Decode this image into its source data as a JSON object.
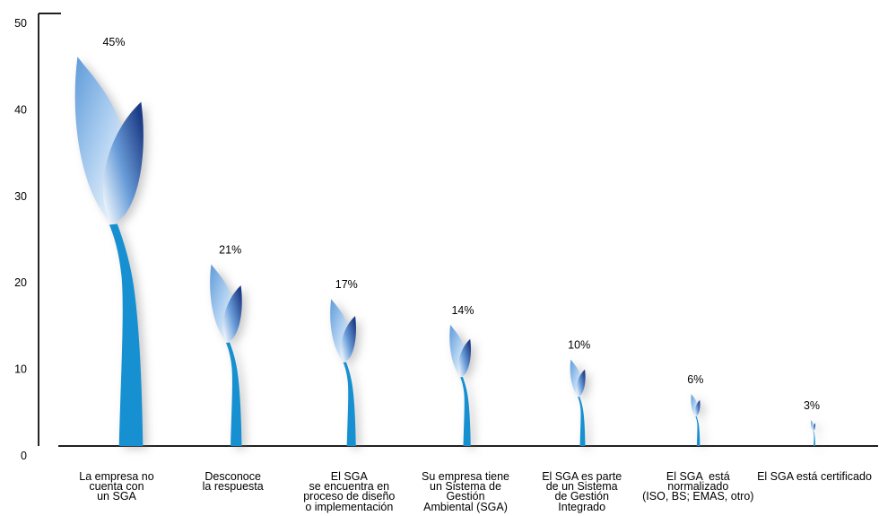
{
  "chart_data": {
    "type": "bar",
    "categories": [
      "La empresa no\ncuenta con\nun SGA",
      "Desconoce\nla respuesta",
      "El SGA\nse encuentra en\nproceso de diseño\no implementación",
      "Su empresa tiene\nun Sistema de\nGestión\nAmbiental (SGA)",
      "El SGA es parte\nde un Sistema\nde Gestión\nIntegrado",
      "El SGA  está\nnormalizado\n(ISO, BS; EMAS, otro)",
      "El SGA está certificado"
    ],
    "values": [
      45,
      21,
      17,
      14,
      10,
      6,
      3
    ],
    "data_labels": [
      "45%",
      "21%",
      "17%",
      "14%",
      "10%",
      "6%",
      "3%"
    ],
    "ylim": [
      0,
      50
    ],
    "yticks": [
      0,
      10,
      20,
      30,
      40,
      50
    ],
    "grid": false
  },
  "colors": {
    "stem": "#1690d1",
    "leaf_light_tip": "#5e9ad9",
    "leaf_light_mid": "#a7cbef",
    "leaf_light_base": "#f4f9fe",
    "leaf_dark_base": "#eef5fc",
    "leaf_dark_mid": "#6c9fda",
    "leaf_dark_tip": "#1c3a85",
    "axis": "#111111"
  }
}
